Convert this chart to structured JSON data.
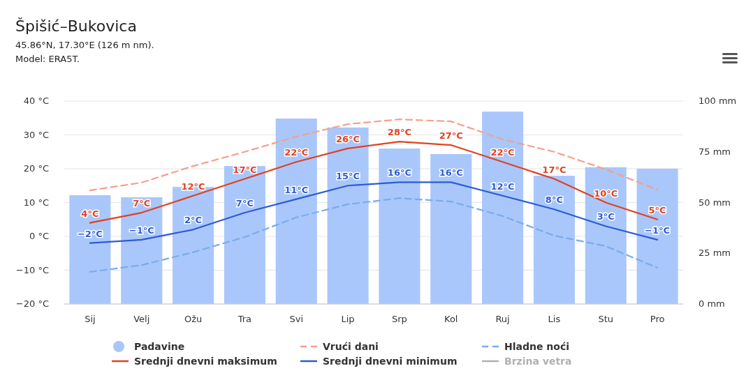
{
  "chart_data": {
    "type": "line",
    "title": "Špišić–Bukovica",
    "subtitle": "45.86°N, 17.30°E (126 m nm).",
    "annotations": [
      "Model: ERA5T."
    ],
    "categories": [
      "Sij",
      "Velj",
      "Ožu",
      "Tra",
      "Svi",
      "Lip",
      "Srp",
      "Kol",
      "Ruj",
      "Lis",
      "Stu",
      "Pro"
    ],
    "ylim": [
      -20,
      40
    ],
    "yticks": [
      {
        "value": -20,
        "label": "−20 °C"
      },
      {
        "value": -10,
        "label": "−10 °C"
      },
      {
        "value": 0,
        "label": "0 °C"
      },
      {
        "value": 10,
        "label": "10 °C"
      },
      {
        "value": 20,
        "label": "20 °C"
      },
      {
        "value": 30,
        "label": "30 °C"
      },
      {
        "value": 40,
        "label": "40 °C"
      }
    ],
    "y2lim": [
      0,
      100
    ],
    "y2ticks": [
      {
        "value": 0,
        "label": "0 mm"
      },
      {
        "value": 25,
        "label": "25 mm"
      },
      {
        "value": 50,
        "label": "50 mm"
      },
      {
        "value": 75,
        "label": "75 mm"
      },
      {
        "value": 100,
        "label": "100 mm"
      }
    ],
    "grid": "y",
    "legend": "bottom",
    "marker": "none",
    "series": [
      {
        "name": "Padavine",
        "type": "bar",
        "axis": "y2",
        "color": "#a9c7fb",
        "values": [
          53.6,
          52.6,
          57.7,
          68,
          91.4,
          87,
          76.6,
          73.9,
          94.8,
          63.2,
          67.4,
          66.7
        ]
      },
      {
        "name": "Vrući dani",
        "line_style": "dashed",
        "color": "#f5a08a",
        "values": [
          13.6,
          15.9,
          20.8,
          25,
          29.5,
          33.2,
          34.6,
          34,
          28.7,
          25,
          19.8,
          13.8
        ]
      },
      {
        "name": "Hladne noći",
        "line_style": "dashed",
        "color": "#78acea",
        "values": [
          -10.5,
          -8.5,
          -4.7,
          -0.2,
          5.6,
          9.5,
          11.3,
          10.3,
          6,
          0.2,
          -2.9,
          -9.3
        ]
      },
      {
        "name": "Srednji dnevni maksimum",
        "line_style": "solid",
        "color": "#e2411f",
        "values": [
          4,
          7,
          12,
          17,
          22,
          26,
          28,
          27,
          22,
          17,
          10,
          5
        ],
        "value_labels": [
          "4°C",
          "7°C",
          "12°C",
          "17°C",
          "22°C",
          "26°C",
          "28°C",
          "27°C",
          "22°C",
          "17°C",
          "10°C",
          "5°C"
        ]
      },
      {
        "name": "Srednji dnevni minimum",
        "line_style": "solid",
        "color": "#2d5bd2",
        "values": [
          -2,
          -1,
          2,
          7,
          11,
          15,
          16,
          16,
          12,
          8,
          3,
          -1
        ],
        "value_labels": [
          "−2°C",
          "−1°C",
          "2°C",
          "7°C",
          "11°C",
          "15°C",
          "16°C",
          "16°C",
          "12°C",
          "8°C",
          "3°C",
          "−1°C"
        ]
      },
      {
        "name": "Brzina vetra",
        "line_style": "solid",
        "color": "#b0b0b0",
        "values": [
          null,
          null,
          null,
          null,
          null,
          null,
          null,
          null,
          null,
          null,
          null,
          null
        ]
      }
    ]
  }
}
